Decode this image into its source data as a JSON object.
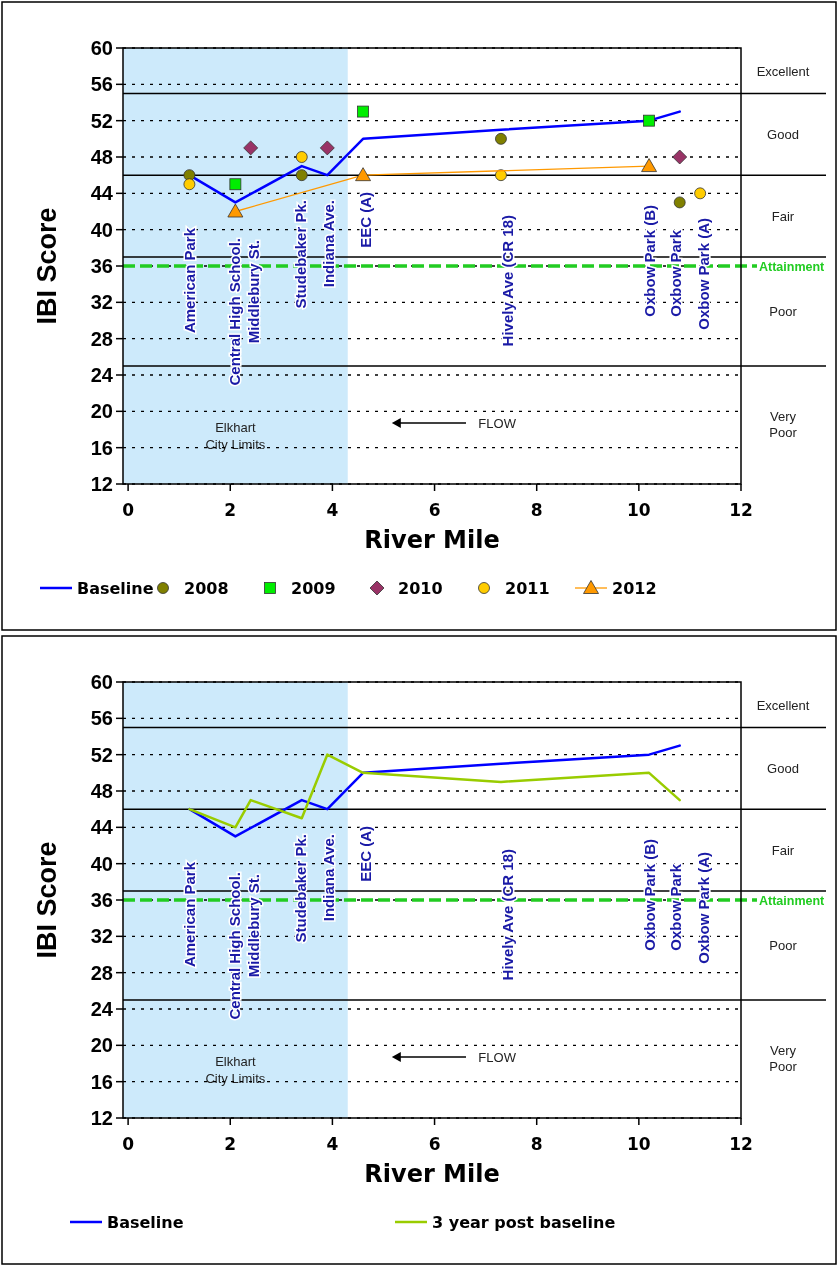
{
  "chart_data": [
    {
      "type": "line",
      "xlabel": "River Mile",
      "ylabel": "IBI Score",
      "xlim": [
        -0.1,
        12
      ],
      "xticks": [
        0,
        2,
        4,
        6,
        8,
        10,
        12
      ],
      "ylim": [
        12,
        60
      ],
      "yticks": [
        12,
        16,
        20,
        24,
        28,
        32,
        36,
        40,
        44,
        48,
        52,
        56,
        60
      ],
      "grid": "y",
      "legend": "bottom",
      "series": [
        {
          "name": "Baseline",
          "type": "line",
          "marker": "none",
          "color": "#0000ff",
          "x": [
            1.2,
            2.1,
            3.4,
            3.9,
            4.6,
            7.3,
            10.2,
            10.8
          ],
          "values": [
            46,
            43,
            47,
            46,
            50,
            51,
            52,
            53
          ]
        },
        {
          "name": "2008",
          "type": "scatter",
          "marker": "circle",
          "color": "#808000",
          "x": [
            1.2,
            3.4,
            7.3,
            10.8
          ],
          "values": [
            46,
            46,
            50,
            43
          ]
        },
        {
          "name": "2009",
          "type": "scatter",
          "marker": "square",
          "color": "#00ee00",
          "x": [
            2.1,
            4.6,
            10.2
          ],
          "values": [
            45,
            53,
            52
          ]
        },
        {
          "name": "2010",
          "type": "scatter",
          "marker": "diamond",
          "color": "#993366",
          "x": [
            2.4,
            3.9,
            10.8
          ],
          "values": [
            49,
            49,
            48
          ]
        },
        {
          "name": "2011",
          "type": "scatter",
          "marker": "circle",
          "color": "#ffcc00",
          "x": [
            1.2,
            3.4,
            7.3,
            11.2
          ],
          "values": [
            45,
            48,
            46,
            44
          ]
        },
        {
          "name": "2012",
          "type": "line",
          "marker": "triangle",
          "color": "#ff9900",
          "x": [
            2.1,
            4.6,
            10.2
          ],
          "values": [
            42,
            46,
            47
          ]
        }
      ],
      "bands": [
        {
          "axis": "x",
          "from": -0.1,
          "to": 4.3,
          "label": "Elkhart City Limits",
          "color": "#cdeafb"
        }
      ],
      "ref_lines": [
        {
          "axis": "y",
          "value": 55,
          "color": "#000000",
          "line_style": "solid"
        },
        {
          "axis": "y",
          "value": 46,
          "color": "#000000",
          "line_style": "solid"
        },
        {
          "axis": "y",
          "value": 37,
          "color": "#000000",
          "line_style": "solid"
        },
        {
          "axis": "y",
          "value": 25,
          "color": "#000000",
          "line_style": "solid"
        },
        {
          "axis": "y",
          "value": 36,
          "label": "Attainment",
          "color": "#22cc22",
          "line_style": "dashed"
        }
      ],
      "annotations": [
        "American Park",
        "Central High School.",
        "Middlebury St.",
        "Studebaker Pk.",
        "Indiana Ave.",
        "EEC (A)",
        "Hively Ave (CR 18)",
        "Oxbow Park (B)",
        "Oxbow Park",
        "Oxbow Park (A)",
        "FLOW",
        "Excellent",
        "Good",
        "Fair",
        "Poor",
        "Very Poor"
      ]
    },
    {
      "type": "line",
      "xlabel": "River Mile",
      "ylabel": "IBI Score",
      "xlim": [
        -0.1,
        12
      ],
      "xticks": [
        0,
        2,
        4,
        6,
        8,
        10,
        12
      ],
      "ylim": [
        12,
        60
      ],
      "yticks": [
        12,
        16,
        20,
        24,
        28,
        32,
        36,
        40,
        44,
        48,
        52,
        56,
        60
      ],
      "grid": "y",
      "legend": "bottom",
      "series": [
        {
          "name": "Baseline",
          "type": "line",
          "marker": "none",
          "color": "#0000ff",
          "x": [
            1.2,
            2.1,
            3.4,
            3.9,
            4.6,
            7.3,
            10.2,
            10.8
          ],
          "values": [
            46,
            43,
            47,
            46,
            50,
            51,
            52,
            53
          ]
        },
        {
          "name": "3 year post baseline",
          "type": "line",
          "marker": "none",
          "color": "#99cc00",
          "x": [
            1.2,
            2.1,
            2.4,
            3.4,
            3.9,
            4.6,
            7.3,
            10.2,
            10.8
          ],
          "values": [
            46,
            44,
            47,
            45,
            52,
            50,
            49,
            50,
            47
          ]
        }
      ],
      "bands": [
        {
          "axis": "x",
          "from": -0.1,
          "to": 4.3,
          "label": "Elkhart City Limits",
          "color": "#cdeafb"
        }
      ],
      "ref_lines": [
        {
          "axis": "y",
          "value": 55,
          "color": "#000000",
          "line_style": "solid"
        },
        {
          "axis": "y",
          "value": 46,
          "color": "#000000",
          "line_style": "solid"
        },
        {
          "axis": "y",
          "value": 37,
          "color": "#000000",
          "line_style": "solid"
        },
        {
          "axis": "y",
          "value": 25,
          "color": "#000000",
          "line_style": "solid"
        },
        {
          "axis": "y",
          "value": 36,
          "label": "Attainment",
          "color": "#22cc22",
          "line_style": "dashed"
        }
      ],
      "annotations": [
        "American Park",
        "Central High School.",
        "Middlebury St.",
        "Studebaker Pk.",
        "Indiana Ave.",
        "EEC (A)",
        "Hively Ave (CR 18)",
        "Oxbow Park (B)",
        "Oxbow Park",
        "Oxbow Park (A)",
        "FLOW",
        "Excellent",
        "Good",
        "Fair",
        "Poor",
        "Very Poor"
      ]
    }
  ]
}
